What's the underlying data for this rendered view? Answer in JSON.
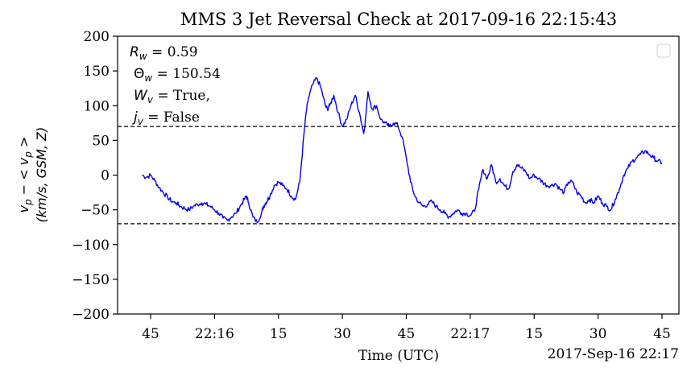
{
  "chart_data": {
    "type": "line",
    "title": "MMS 3 Jet Reversal Check at 2017-09-16 22:15:43",
    "ylabel_line1": "v_p − < v_p >",
    "ylabel_line2": "(km/s, GSM, Z)",
    "xlabel": "Time (UTC)",
    "x_offset_label": "2017-Sep-16 22:17",
    "ylim": [
      -200,
      200
    ],
    "yticks": [
      -200,
      -150,
      -100,
      -50,
      0,
      50,
      100,
      150,
      200
    ],
    "xlim_seconds": [
      35,
      88
    ],
    "xticks": [
      {
        "t": 45,
        "label": "45"
      },
      {
        "t": 60,
        "label": "22:16"
      },
      {
        "t": 75,
        "label": "15"
      },
      {
        "t": 90,
        "label": "30"
      },
      {
        "t": 105,
        "label": "45"
      },
      {
        "t": 120,
        "label": "22:17"
      },
      {
        "t": 135,
        "label": "15"
      },
      {
        "t": 150,
        "label": "30"
      },
      {
        "t": 165,
        "label": "45"
      }
    ],
    "time_reference": "seconds after 22:15:00 UTC",
    "thresholds": [
      70,
      -70
    ],
    "legend": "top-right (empty)",
    "series_color": "#0000ee",
    "annotations": {
      "r_w": "R_w = 0.59",
      "theta_w": "Θ_w = 150.54",
      "w_v": "W_v = True,",
      "j_v": "j_v = False"
    },
    "series": [
      {
        "x": [
          43.0,
          44.0,
          45.0,
          46.0,
          47.0,
          48.0,
          49.0,
          50.0,
          51.0,
          52.0,
          53.0,
          54.0,
          55.0,
          56.0,
          57.0,
          58.0,
          59.0,
          60.0,
          61.0,
          62.0,
          63.0,
          64.0,
          65.0,
          66.0,
          67.0,
          67.5,
          68.0,
          69.0,
          70.0,
          71.0,
          71.5,
          72.0,
          72.5,
          73.0,
          74.0,
          75.0,
          76.0,
          77.0,
          78.0,
          79.0,
          80.0,
          81.0,
          81.5,
          82.0,
          83.0,
          84.0,
          85.0,
          86.0,
          86.5,
          87.0,
          88.0,
          89.0,
          90.0,
          91.0,
          92.0,
          93.0,
          94.0,
          95.0,
          95.5,
          96.0,
          97.0,
          98.0,
          99.0,
          100.0,
          101.0,
          102.0,
          103.0,
          104.0,
          105.0,
          106.0,
          107.0,
          108.0,
          109.0,
          110.0,
          111.0,
          112.0,
          113.0,
          114.0,
          115.0,
          116.0,
          117.0,
          118.0,
          119.0,
          120.0,
          121.0,
          122.0,
          123.0,
          124.0,
          125.0,
          126.0,
          127.0,
          128.0,
          129.0,
          130.0,
          131.0,
          132.0,
          133.0,
          134.0,
          135.0,
          136.0,
          137.0,
          138.0,
          139.0,
          140.0,
          141.0,
          142.0,
          143.0,
          144.0,
          145.0,
          146.0,
          147.0,
          148.0,
          149.0,
          150.0,
          151.0,
          152.0,
          153.0,
          154.0,
          155.0,
          156.0,
          157.0,
          158.0,
          159.0,
          160.0,
          161.0,
          162.0,
          163.0,
          164.0,
          165.0
        ],
        "y": [
          0,
          -3,
          0,
          -8,
          -18,
          -25,
          -32,
          -38,
          -40,
          -45,
          -48,
          -50,
          -45,
          -42,
          -40,
          -42,
          -45,
          -50,
          -55,
          -62,
          -65,
          -60,
          -55,
          -45,
          -35,
          -30,
          -40,
          -60,
          -68,
          -55,
          -45,
          -40,
          -35,
          -30,
          -15,
          -10,
          -15,
          -20,
          -30,
          -35,
          -10,
          60,
          90,
          110,
          130,
          140,
          125,
          100,
          95,
          100,
          115,
          90,
          70,
          80,
          100,
          115,
          90,
          60,
          85,
          120,
          95,
          100,
          80,
          75,
          70,
          75,
          72,
          55,
          25,
          -10,
          -30,
          -40,
          -45,
          -42,
          -38,
          -45,
          -50,
          -55,
          -60,
          -55,
          -50,
          -55,
          -55,
          -58,
          -52,
          -20,
          8,
          -5,
          15,
          -10,
          -5,
          -15,
          -20,
          5,
          15,
          10,
          5,
          -5,
          0,
          -5,
          -10,
          -15,
          -15,
          -12,
          -20,
          -25,
          -10,
          -10,
          -25,
          -30,
          -40,
          -35,
          -40,
          -30,
          -40,
          -45,
          -50,
          -35,
          -20,
          0,
          10,
          20,
          25,
          30,
          35,
          30,
          25,
          20,
          18
        ]
      }
    ]
  }
}
